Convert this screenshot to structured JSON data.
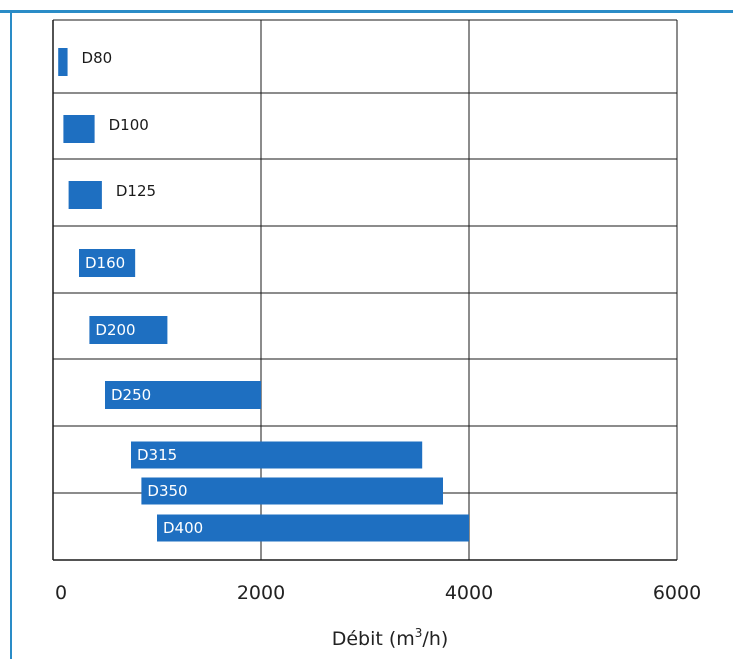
{
  "header": {
    "clipped_title": ""
  },
  "chart_data": {
    "type": "bar",
    "orientation": "horizontal",
    "title": "",
    "xlabel_main": "Débit (m",
    "xlabel_sup": "3",
    "xlabel_end": "/h)",
    "ylabel": "",
    "xlim": [
      0,
      6000
    ],
    "x_ticks": [
      "0",
      "2000",
      "4000",
      "6000"
    ],
    "grid": true,
    "bar_color": "#1e6fc1",
    "bars": [
      {
        "label": "D80",
        "start": 50,
        "end": 140,
        "row": 0,
        "label_inside": false
      },
      {
        "label": "D100",
        "start": 100,
        "end": 400,
        "row": 1,
        "label_inside": false
      },
      {
        "label": "D125",
        "start": 150,
        "end": 470,
        "row": 2,
        "label_inside": false
      },
      {
        "label": "D160",
        "start": 250,
        "end": 790,
        "row": 3,
        "label_inside": true
      },
      {
        "label": "D200",
        "start": 350,
        "end": 1100,
        "row": 4,
        "label_inside": true
      },
      {
        "label": "D250",
        "start": 500,
        "end": 2000,
        "row": 5,
        "label_inside": true
      },
      {
        "label": "D315",
        "start": 750,
        "end": 3550,
        "row": 6.0,
        "label_inside": true
      },
      {
        "label": "D350",
        "start": 850,
        "end": 3750,
        "row": 6.5,
        "label_inside": true
      },
      {
        "label": "D400",
        "start": 1000,
        "end": 4000,
        "row": 7.0,
        "label_inside": true
      }
    ]
  }
}
